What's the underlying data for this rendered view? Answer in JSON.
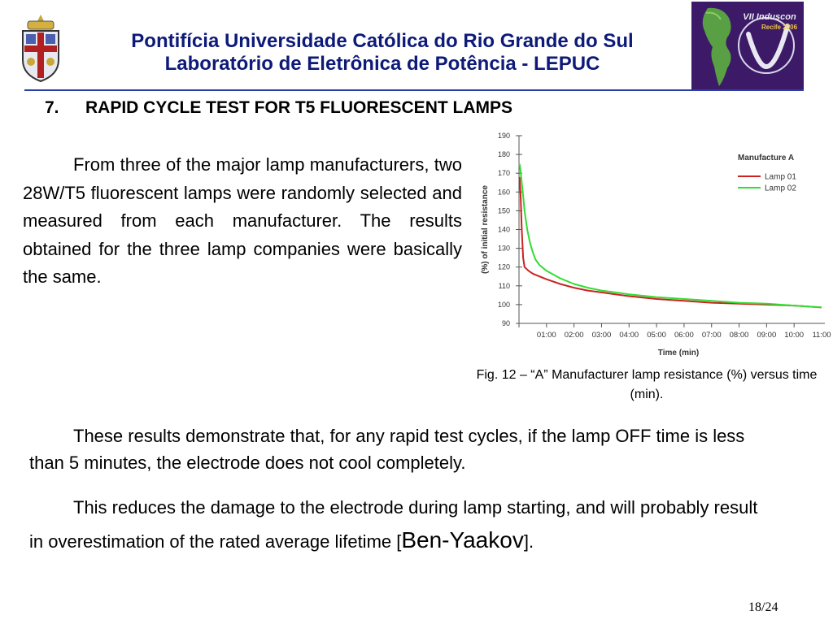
{
  "header": {
    "university": "Pontifícia Universidade Católica do Rio Grande do Sul",
    "lab": "Laboratório de Eletrônica de Potência - LEPUC",
    "conference_logo": {
      "line1": "VII Induscon",
      "line2": "Recife 2006"
    }
  },
  "colors": {
    "header_text": "#0d1a78",
    "rule": "#2d3da6",
    "lamp01": "#cc2222",
    "lamp02": "#33dd33"
  },
  "section": {
    "number": "7.",
    "title": "RAPID CYCLE TEST FOR T5 FLUORESCENT LAMPS"
  },
  "paragraphs": {
    "p1": "From three of the major lamp manufacturers, two 28W/T5 fluorescent lamps were randomly selected and measured from each manufacturer. The results obtained for the three lamp companies were basically the same.",
    "p2": "These results demonstrate that, for any rapid test cycles, if the lamp OFF time is less than 5 minutes, the electrode does not cool completely.",
    "p3_main": "This reduces the damage to the electrode during lamp starting, and will probably result in overestimation of the rated average lifetime [",
    "p3_ref": "Ben-Yaakov",
    "p3_end": "]."
  },
  "figure": {
    "caption": "Fig. 12 – “A” Manufacturer lamp resistance (%) versus time (min)."
  },
  "page": "18/24",
  "chart_data": {
    "type": "line",
    "title": "",
    "legend_title": "Manufacture A",
    "legend_position": "top-right",
    "xlabel": "Time (min)",
    "ylabel": "(%) of initial resistance",
    "xlim": [
      0,
      11
    ],
    "ylim": [
      90,
      190
    ],
    "x_ticks": [
      "01:00",
      "02:00",
      "03:00",
      "04:00",
      "05:00",
      "06:00",
      "07:00",
      "08:00",
      "09:00",
      "10:00",
      "11:00"
    ],
    "y_ticks": [
      90,
      100,
      110,
      120,
      130,
      140,
      150,
      160,
      170,
      180,
      190
    ],
    "grid": false,
    "series": [
      {
        "name": "Lamp 01",
        "color": "#cc2222",
        "points": [
          [
            0.02,
            168
          ],
          [
            0.06,
            158
          ],
          [
            0.1,
            140
          ],
          [
            0.15,
            125
          ],
          [
            0.2,
            120
          ],
          [
            0.35,
            118
          ],
          [
            0.5,
            116.5
          ],
          [
            0.75,
            115
          ],
          [
            1,
            113.5
          ],
          [
            1.5,
            111
          ],
          [
            2,
            109
          ],
          [
            2.5,
            107.5
          ],
          [
            3,
            106.5
          ],
          [
            3.5,
            105.5
          ],
          [
            4,
            104.5
          ],
          [
            5,
            103
          ],
          [
            6,
            102
          ],
          [
            7,
            101
          ],
          [
            8,
            100.5
          ],
          [
            9,
            100
          ],
          [
            10,
            99.5
          ],
          [
            11,
            98.5
          ]
        ]
      },
      {
        "name": "Lamp 02",
        "color": "#33dd33",
        "points": [
          [
            0.02,
            175
          ],
          [
            0.05,
            172
          ],
          [
            0.1,
            165
          ],
          [
            0.15,
            158
          ],
          [
            0.2,
            150
          ],
          [
            0.3,
            140
          ],
          [
            0.4,
            133
          ],
          [
            0.5,
            128
          ],
          [
            0.6,
            124
          ],
          [
            0.75,
            121
          ],
          [
            1,
            118
          ],
          [
            1.5,
            114
          ],
          [
            2,
            111
          ],
          [
            2.5,
            109
          ],
          [
            3,
            107.5
          ],
          [
            3.5,
            106.5
          ],
          [
            4,
            105.5
          ],
          [
            5,
            104
          ],
          [
            6,
            103
          ],
          [
            7,
            102
          ],
          [
            8,
            101
          ],
          [
            9,
            100.5
          ],
          [
            10,
            99.5
          ],
          [
            11,
            98.5
          ]
        ]
      }
    ]
  }
}
